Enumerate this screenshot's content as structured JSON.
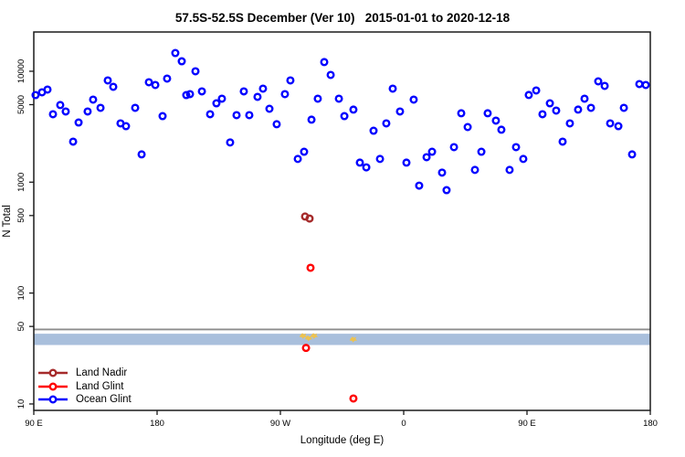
{
  "title": "57.5S-52.5S December (Ver 10)   2015-01-01 to 2020-12-18",
  "chart_data": {
    "type": "scatter",
    "title": "57.5S-52.5S December (Ver 10)   2015-01-01 to 2020-12-18",
    "xlabel": "Longitude (deg E)",
    "ylabel": "N Total",
    "x_axis": {
      "domain": [
        90,
        540
      ],
      "ticks": [
        {
          "value": 90,
          "label": "90 E"
        },
        {
          "value": 180,
          "label": "180"
        },
        {
          "value": 270,
          "label": "90 W"
        },
        {
          "value": 360,
          "label": "0"
        },
        {
          "value": 450,
          "label": "90 E"
        },
        {
          "value": 540,
          "label": "180"
        }
      ]
    },
    "y_axis": {
      "scale": "log",
      "domain": [
        8.75,
        22600
      ],
      "ticks": [
        {
          "value": 10000,
          "label": "10000"
        },
        {
          "value": 5000,
          "label": "5000"
        },
        {
          "value": 1000,
          "label": "1000"
        },
        {
          "value": 500,
          "label": "500"
        },
        {
          "value": 100,
          "label": "100"
        },
        {
          "value": 50,
          "label": "50"
        },
        {
          "value": 10,
          "label": "10"
        }
      ]
    },
    "grid": false,
    "legend_position": "bottom-left",
    "series": [
      {
        "name": "Land Nadir",
        "color": "#A52A2A",
        "points": [
          [
            288,
            490
          ],
          [
            291.3,
            470
          ]
        ]
      },
      {
        "name": "Land Glint",
        "color": "#FF0000",
        "points": [
          [
            292,
            169
          ],
          [
            288.7,
            32
          ],
          [
            323.3,
            11.2
          ]
        ]
      },
      {
        "name": "Ocean Glint",
        "color": "#0000FF",
        "points": [
          [
            91.3,
            6100
          ],
          [
            96,
            6460
          ],
          [
            100,
            6840
          ],
          [
            104,
            4100
          ],
          [
            109.3,
            4960
          ],
          [
            113.3,
            4340
          ],
          [
            118.7,
            2320
          ],
          [
            122.7,
            3450
          ],
          [
            129.3,
            4340
          ],
          [
            133.3,
            5550
          ],
          [
            138.7,
            4680
          ],
          [
            144,
            8270
          ],
          [
            148,
            7240
          ],
          [
            153.3,
            3390
          ],
          [
            157.3,
            3200
          ],
          [
            164,
            4680
          ],
          [
            168.7,
            1780
          ],
          [
            174,
            7960
          ],
          [
            178.7,
            7520
          ],
          [
            184,
            3940
          ],
          [
            187.3,
            8590
          ],
          [
            193.3,
            14600
          ],
          [
            198,
            12300
          ],
          [
            201.3,
            6100
          ],
          [
            204,
            6220
          ],
          [
            208,
            10000
          ],
          [
            212.7,
            6590
          ],
          [
            218.7,
            4100
          ],
          [
            223.3,
            5140
          ],
          [
            227.3,
            5660
          ],
          [
            233.3,
            2280
          ],
          [
            238,
            4020
          ],
          [
            243.3,
            6590
          ],
          [
            247.3,
            4020
          ],
          [
            253.3,
            5880
          ],
          [
            257.3,
            6970
          ],
          [
            262,
            4590
          ],
          [
            267.3,
            3330
          ],
          [
            273.3,
            6220
          ],
          [
            277.3,
            8270
          ],
          [
            282.7,
            1620
          ],
          [
            287.3,
            1880
          ],
          [
            292.7,
            3660
          ],
          [
            297.3,
            5660
          ],
          [
            302,
            12100
          ],
          [
            306.7,
            9270
          ],
          [
            312.7,
            5660
          ],
          [
            316.7,
            3940
          ],
          [
            323.3,
            4510
          ],
          [
            328,
            1500
          ],
          [
            332.7,
            1360
          ],
          [
            338,
            2910
          ],
          [
            342.7,
            1620
          ],
          [
            347.3,
            3390
          ],
          [
            352,
            6970
          ],
          [
            357.3,
            4340
          ],
          [
            362,
            1500
          ],
          [
            367.3,
            5550
          ],
          [
            371.3,
            931
          ],
          [
            376.7,
            1680
          ],
          [
            380.7,
            1880
          ],
          [
            388,
            1220
          ],
          [
            391.3,
            847
          ],
          [
            396.7,
            2070
          ],
          [
            402,
            4180
          ],
          [
            406.7,
            3140
          ],
          [
            412,
            1290
          ],
          [
            416.7,
            1880
          ],
          [
            421.3,
            4180
          ],
          [
            427.3,
            3590
          ],
          [
            431.3,
            2970
          ],
          [
            437.3,
            1290
          ],
          [
            442,
            2070
          ],
          [
            447.3,
            1620
          ],
          [
            451.3,
            6110
          ],
          [
            456.7,
            6710
          ],
          [
            461.3,
            4100
          ],
          [
            466.7,
            5140
          ],
          [
            471.3,
            4420
          ],
          [
            476,
            2320
          ],
          [
            481.3,
            3390
          ],
          [
            487.3,
            4510
          ],
          [
            492,
            5660
          ],
          [
            496.7,
            4680
          ],
          [
            502,
            8110
          ],
          [
            506.7,
            7380
          ],
          [
            510.7,
            3390
          ],
          [
            516.7,
            3200
          ],
          [
            520.7,
            4680
          ],
          [
            526.7,
            1780
          ],
          [
            532,
            7670
          ],
          [
            536.7,
            7520
          ]
        ]
      }
    ],
    "annotations": {
      "reference_line": {
        "n": 47,
        "color": "#8C8C8C"
      },
      "highlight_band": {
        "n_top": 43,
        "n_bottom": 34,
        "color": "#A9BFDC"
      },
      "speck_marks": {
        "color": "#EDC24F",
        "points": [
          [
            286.7,
            42
          ],
          [
            290.7,
            40
          ],
          [
            294.7,
            42
          ],
          [
            323.3,
            39
          ]
        ]
      }
    }
  },
  "colors": {
    "land_nadir": "#A52A2A",
    "land_glint": "#FF0000",
    "ocean_glint": "#0000FF",
    "band": "#A9BFDC",
    "reference_line": "#8C8C8C",
    "specks": "#EDC24F"
  }
}
